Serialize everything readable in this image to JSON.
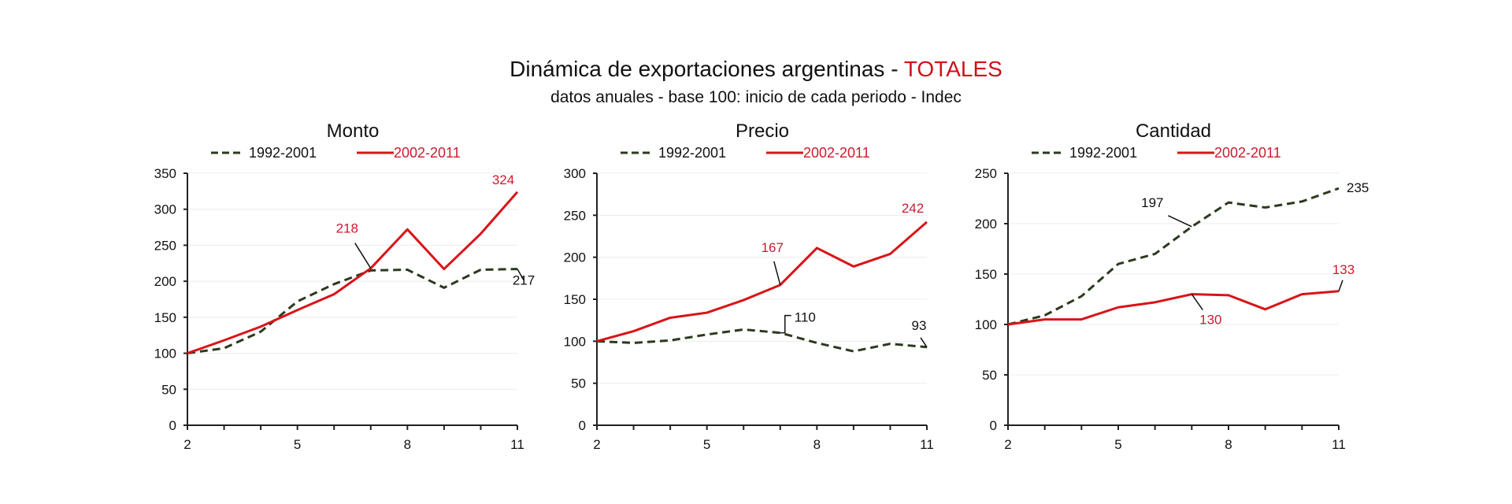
{
  "header": {
    "title_main": "Dinámica de exportaciones argentinas - ",
    "title_accent": "TOTALES",
    "subtitle": "datos anuales - base 100: inicio de cada periodo - Indec"
  },
  "colors": {
    "series_1992": "#2b3a1e",
    "series_2002": "#d81418",
    "label_2002": "#cc1a2e",
    "accent_title": "#d0101a"
  },
  "chart_data": [
    {
      "type": "line",
      "title": "Monto",
      "x": [
        2,
        3,
        4,
        5,
        6,
        7,
        8,
        9,
        10,
        11
      ],
      "xticks": [
        "2",
        "5",
        "8",
        "11"
      ],
      "ylim": [
        0,
        350
      ],
      "yticks": [
        "0",
        "50",
        "100",
        "150",
        "200",
        "250",
        "300",
        "350"
      ],
      "grid": true,
      "legend": "top",
      "series": [
        {
          "name": "1992-2001",
          "style": "dashed",
          "values": [
            100,
            107,
            130,
            172,
            196,
            215,
            216,
            191,
            216,
            217
          ]
        },
        {
          "name": "2002-2011",
          "style": "solid",
          "values": [
            100,
            118,
            137,
            160,
            182,
            218,
            272,
            217,
            266,
            324
          ]
        }
      ],
      "annotations": [
        {
          "text": "218",
          "series": "2002-2011",
          "x": 7
        },
        {
          "text": "324",
          "series": "2002-2011",
          "x": 11
        },
        {
          "text": "217",
          "series": "1992-2001",
          "x": 11
        }
      ]
    },
    {
      "type": "line",
      "title": "Precio",
      "x": [
        2,
        3,
        4,
        5,
        6,
        7,
        8,
        9,
        10,
        11
      ],
      "xticks": [
        "2",
        "5",
        "8",
        "11"
      ],
      "ylim": [
        0,
        300
      ],
      "yticks": [
        "0",
        "50",
        "100",
        "150",
        "200",
        "250",
        "300"
      ],
      "grid": true,
      "legend": "top",
      "series": [
        {
          "name": "1992-2001",
          "style": "dashed",
          "values": [
            100,
            98,
            101,
            108,
            114,
            110,
            98,
            88,
            97,
            93
          ]
        },
        {
          "name": "2002-2011",
          "style": "solid",
          "values": [
            100,
            112,
            128,
            134,
            149,
            167,
            211,
            189,
            204,
            242
          ]
        }
      ],
      "annotations": [
        {
          "text": "167",
          "series": "2002-2011",
          "x": 7
        },
        {
          "text": "242",
          "series": "2002-2011",
          "x": 11
        },
        {
          "text": "110",
          "series": "1992-2001",
          "x": 7
        },
        {
          "text": "93",
          "series": "1992-2001",
          "x": 11
        }
      ]
    },
    {
      "type": "line",
      "title": "Cantidad",
      "x": [
        2,
        3,
        4,
        5,
        6,
        7,
        8,
        9,
        10,
        11
      ],
      "xticks": [
        "2",
        "5",
        "8",
        "11"
      ],
      "ylim": [
        0,
        250
      ],
      "yticks": [
        "0",
        "50",
        "100",
        "150",
        "200",
        "250"
      ],
      "grid": true,
      "legend": "top",
      "series": [
        {
          "name": "1992-2001",
          "style": "dashed",
          "values": [
            100,
            109,
            128,
            160,
            170,
            197,
            221,
            216,
            222,
            235
          ]
        },
        {
          "name": "2002-2011",
          "style": "solid",
          "values": [
            100,
            105,
            105,
            117,
            122,
            130,
            129,
            115,
            130,
            133
          ]
        }
      ],
      "annotations": [
        {
          "text": "197",
          "series": "1992-2001",
          "x": 7
        },
        {
          "text": "235",
          "series": "1992-2001",
          "x": 11
        },
        {
          "text": "130",
          "series": "2002-2011",
          "x": 7
        },
        {
          "text": "133",
          "series": "2002-2011",
          "x": 11
        }
      ]
    }
  ]
}
